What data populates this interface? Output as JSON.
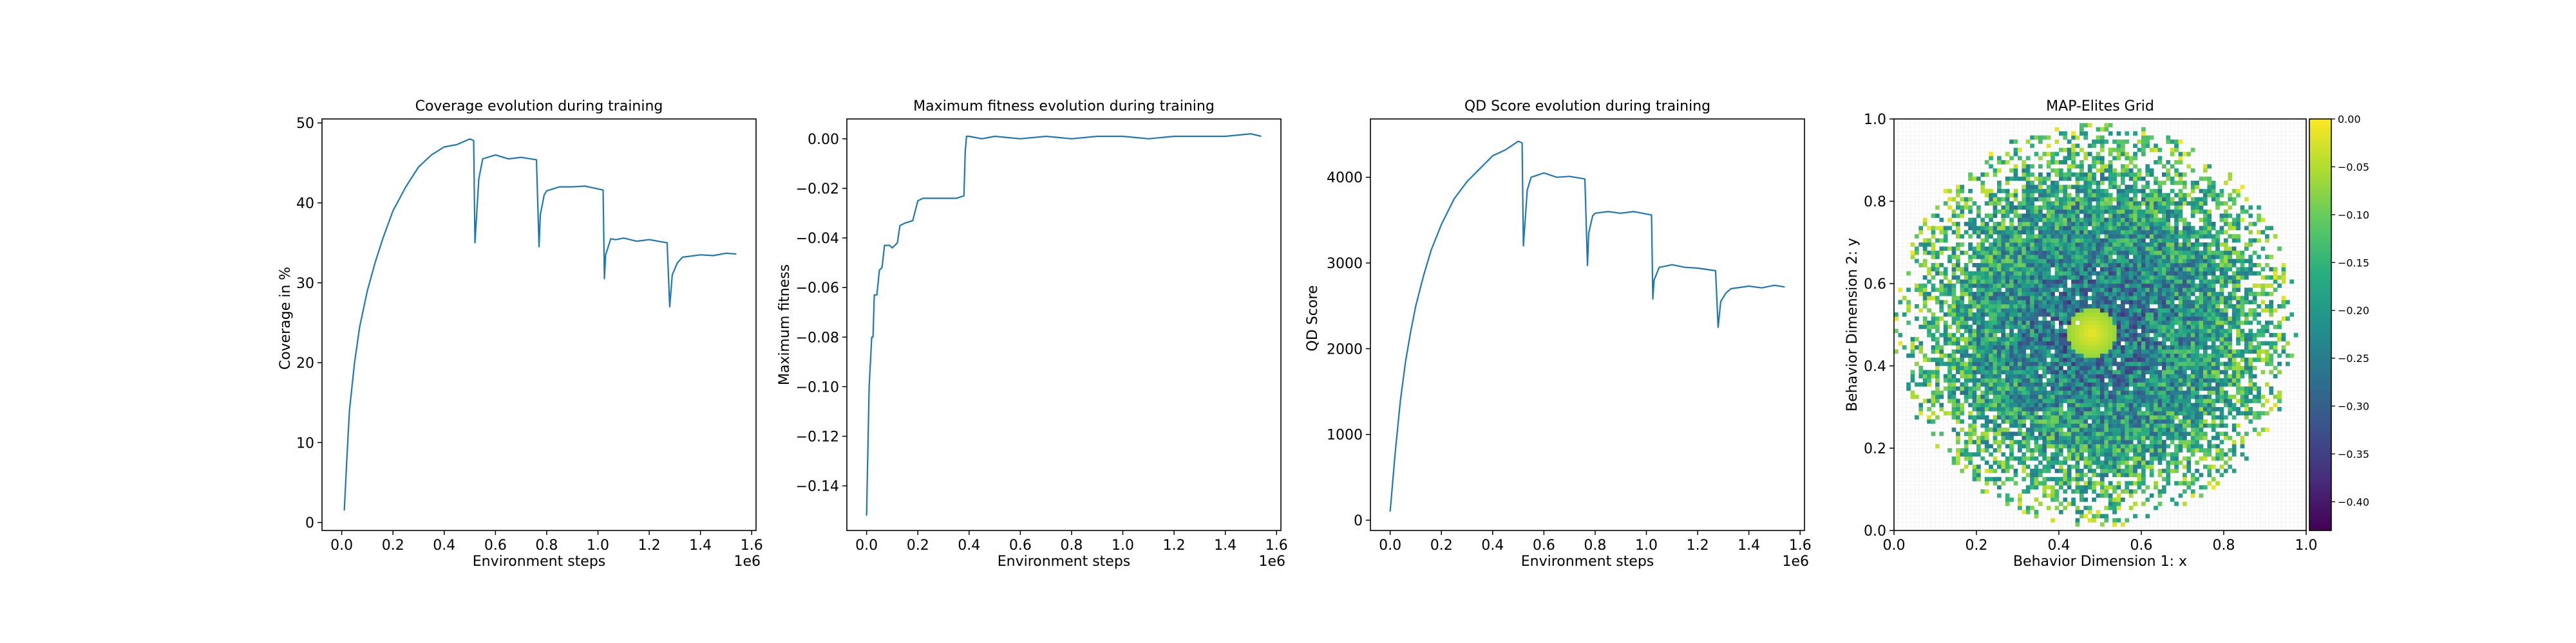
{
  "chart_data": [
    {
      "type": "line",
      "title": "Coverage evolution during training",
      "xlabel": "Environment steps",
      "ylabel": "Coverage in %",
      "x_offset_label": "1e6",
      "xlim": [
        -0.077,
        1.617
      ],
      "ylim": [
        -1.0,
        50.5
      ],
      "xticks": [
        0.0,
        0.2,
        0.4,
        0.6,
        0.8,
        1.0,
        1.2,
        1.4,
        1.6
      ],
      "xtick_labels": [
        "0.0",
        "0.2",
        "0.4",
        "0.6",
        "0.8",
        "1.0",
        "1.2",
        "1.4",
        "1.6"
      ],
      "yticks": [
        0,
        10,
        20,
        30,
        40,
        50
      ],
      "ytick_labels": [
        "0",
        "10",
        "20",
        "30",
        "40",
        "50"
      ],
      "grid": false,
      "series": [
        {
          "x": [
            0.01,
            0.02,
            0.03,
            0.05,
            0.07,
            0.1,
            0.13,
            0.16,
            0.2,
            0.25,
            0.3,
            0.35,
            0.4,
            0.45,
            0.5,
            0.515,
            0.52,
            0.535,
            0.55,
            0.6,
            0.65,
            0.7,
            0.76,
            0.77,
            0.775,
            0.79,
            0.8,
            0.85,
            0.9,
            0.95,
            1.02,
            1.025,
            1.03,
            1.05,
            1.07,
            1.1,
            1.15,
            1.2,
            1.27,
            1.28,
            1.29,
            1.31,
            1.33,
            1.4,
            1.45,
            1.5,
            1.54
          ],
          "y": [
            1.5,
            8,
            14,
            20,
            24.5,
            29,
            32.5,
            35.5,
            39,
            42,
            44.5,
            46,
            47,
            47.3,
            48,
            47.8,
            35,
            43,
            45.5,
            46,
            45.5,
            45.7,
            45.4,
            34.5,
            38.5,
            41,
            41.5,
            42,
            42,
            42.1,
            41.6,
            30.5,
            33.5,
            35.5,
            35.4,
            35.6,
            35.2,
            35.4,
            35,
            27,
            31,
            32.5,
            33.2,
            33.5,
            33.4,
            33.7,
            33.6
          ]
        }
      ]
    },
    {
      "type": "line",
      "title": "Maximum fitness evolution during training",
      "xlabel": "Environment steps",
      "ylabel": "Maximum fitness",
      "x_offset_label": "1e6",
      "xlim": [
        -0.077,
        1.617
      ],
      "ylim": [
        -0.158,
        0.008
      ],
      "xticks": [
        0.0,
        0.2,
        0.4,
        0.6,
        0.8,
        1.0,
        1.2,
        1.4,
        1.6
      ],
      "xtick_labels": [
        "0.0",
        "0.2",
        "0.4",
        "0.6",
        "0.8",
        "1.0",
        "1.2",
        "1.4",
        "1.6"
      ],
      "yticks": [
        0.0,
        -0.02,
        -0.04,
        -0.06,
        -0.08,
        -0.1,
        -0.12,
        -0.14
      ],
      "ytick_labels": [
        "0.00",
        "−0.02",
        "−0.04",
        "−0.06",
        "−0.08",
        "−0.10",
        "−0.12",
        "−0.14"
      ],
      "grid": false,
      "series": [
        {
          "x": [
            0.0,
            0.01,
            0.02,
            0.025,
            0.03,
            0.04,
            0.05,
            0.06,
            0.07,
            0.09,
            0.1,
            0.12,
            0.13,
            0.15,
            0.18,
            0.2,
            0.22,
            0.25,
            0.3,
            0.35,
            0.38,
            0.385,
            0.39,
            0.4,
            0.45,
            0.5,
            0.6,
            0.7,
            0.8,
            0.9,
            1.0,
            1.1,
            1.2,
            1.3,
            1.4,
            1.5,
            1.54
          ],
          "y": [
            -0.152,
            -0.1,
            -0.08,
            -0.08,
            -0.063,
            -0.063,
            -0.053,
            -0.052,
            -0.043,
            -0.043,
            -0.044,
            -0.042,
            -0.035,
            -0.034,
            -0.033,
            -0.025,
            -0.024,
            -0.024,
            -0.024,
            -0.024,
            -0.023,
            -0.005,
            0.001,
            0.001,
            0.0,
            0.001,
            0.0,
            0.001,
            0.0,
            0.001,
            0.001,
            0.0,
            0.001,
            0.001,
            0.001,
            0.002,
            0.001
          ]
        }
      ]
    },
    {
      "type": "line",
      "title": "QD Score evolution during training",
      "xlabel": "Environment steps",
      "ylabel": "QD Score",
      "x_offset_label": "1e6",
      "xlim": [
        -0.077,
        1.617
      ],
      "ylim": [
        -120,
        4680
      ],
      "xticks": [
        0.0,
        0.2,
        0.4,
        0.6,
        0.8,
        1.0,
        1.2,
        1.4,
        1.6
      ],
      "xtick_labels": [
        "0.0",
        "0.2",
        "0.4",
        "0.6",
        "0.8",
        "1.0",
        "1.2",
        "1.4",
        "1.6"
      ],
      "yticks": [
        0,
        1000,
        2000,
        3000,
        4000
      ],
      "ytick_labels": [
        "0",
        "1000",
        "2000",
        "3000",
        "4000"
      ],
      "grid": false,
      "series": [
        {
          "x": [
            0.0,
            0.02,
            0.04,
            0.06,
            0.08,
            0.1,
            0.13,
            0.16,
            0.2,
            0.25,
            0.3,
            0.35,
            0.4,
            0.45,
            0.5,
            0.515,
            0.52,
            0.535,
            0.55,
            0.6,
            0.65,
            0.7,
            0.76,
            0.77,
            0.775,
            0.79,
            0.8,
            0.85,
            0.9,
            0.95,
            1.02,
            1.025,
            1.03,
            1.05,
            1.07,
            1.1,
            1.15,
            1.2,
            1.27,
            1.28,
            1.29,
            1.31,
            1.33,
            1.4,
            1.45,
            1.5,
            1.54
          ],
          "y": [
            100,
            800,
            1400,
            1850,
            2200,
            2500,
            2850,
            3150,
            3450,
            3750,
            3950,
            4100,
            4250,
            4320,
            4420,
            4400,
            3200,
            3850,
            4000,
            4050,
            4000,
            4010,
            3980,
            2970,
            3350,
            3550,
            3580,
            3600,
            3580,
            3600,
            3560,
            2580,
            2800,
            2950,
            2960,
            2980,
            2950,
            2940,
            2910,
            2250,
            2550,
            2650,
            2700,
            2730,
            2710,
            2740,
            2720
          ]
        }
      ]
    },
    {
      "type": "heatmap",
      "title": "MAP-Elites Grid",
      "xlabel": "Behavior Dimension 1: x",
      "ylabel": "Behavior Dimension 2: y",
      "xlim": [
        0.0,
        1.0
      ],
      "ylim": [
        0.0,
        1.0
      ],
      "xticks": [
        0.0,
        0.2,
        0.4,
        0.6,
        0.8,
        1.0
      ],
      "xtick_labels": [
        "0.0",
        "0.2",
        "0.4",
        "0.6",
        "0.8",
        "1.0"
      ],
      "yticks": [
        0.0,
        0.2,
        0.4,
        0.6,
        0.8,
        1.0
      ],
      "ytick_labels": [
        "0.0",
        "0.2",
        "0.4",
        "0.6",
        "0.8",
        "1.0"
      ],
      "grid_cells": 100,
      "grid": true,
      "filled_region": {
        "center_x": 0.49,
        "center_y": 0.5,
        "radius": 0.49
      },
      "bright_spot": {
        "x": 0.48,
        "y": 0.48
      },
      "colorscale": "viridis",
      "colorbar": {
        "vmin": -0.43,
        "vmax": 0.0,
        "ticks": [
          0.0,
          -0.05,
          -0.1,
          -0.15,
          -0.2,
          -0.25,
          -0.3,
          -0.35,
          -0.4
        ],
        "tick_labels": [
          "0.00",
          "−0.05",
          "−0.10",
          "−0.15",
          "−0.20",
          "−0.25",
          "−0.30",
          "−0.35",
          "−0.40"
        ]
      }
    }
  ]
}
